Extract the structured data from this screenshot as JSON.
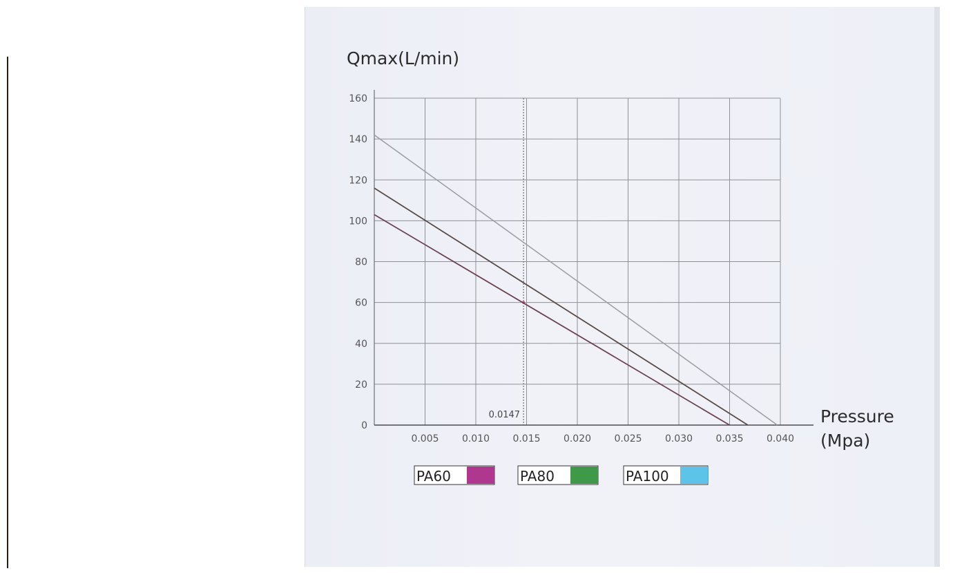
{
  "chart_data": {
    "type": "line",
    "ylabel": "Qmax(L/min)",
    "xlabel_line1": "Pressure",
    "xlabel_line2": "(Mpa)",
    "xlim": [
      0,
      0.04
    ],
    "ylim": [
      0,
      160
    ],
    "x_ticks": [
      "0.005",
      "0.010",
      "0.015",
      "0.020",
      "0.025",
      "0.030",
      "0.035",
      "0.040"
    ],
    "y_ticks": [
      "0",
      "20",
      "40",
      "60",
      "80",
      "100",
      "120",
      "140",
      "160"
    ],
    "grid": true,
    "annotation": {
      "label": "0.0147",
      "x": 0.0147,
      "y": 60
    },
    "series": [
      {
        "name": "PA60",
        "x": [
          0,
          0.035
        ],
        "y": [
          103,
          0
        ],
        "legend_color": "#b0378f"
      },
      {
        "name": "PA80",
        "x": [
          0,
          0.0368
        ],
        "y": [
          116,
          0
        ],
        "legend_color": "#3c9a48"
      },
      {
        "name": "PA100",
        "x": [
          0,
          0.0397
        ],
        "y": [
          142,
          0
        ],
        "legend_color": "#5cc4e8"
      }
    ],
    "legend_position": "bottom"
  }
}
